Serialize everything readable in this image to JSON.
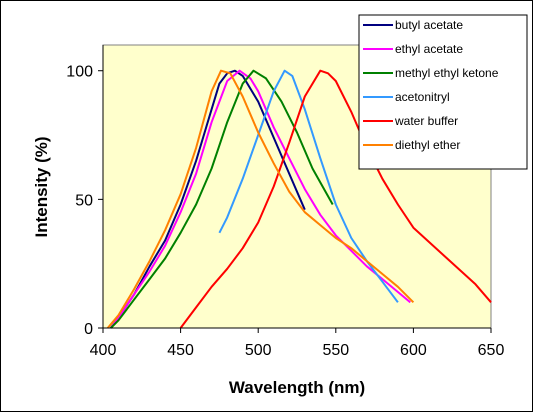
{
  "chart_data": {
    "type": "line",
    "title": "",
    "xlabel": "Wavelength (nm)",
    "ylabel": "Intensity (%)",
    "xlim": [
      400,
      650
    ],
    "ylim": [
      0,
      110
    ],
    "x_ticks": [
      400,
      450,
      500,
      550,
      600,
      650
    ],
    "y_ticks": [
      0,
      50,
      100
    ],
    "grid": false,
    "legend": "top-right",
    "plot_background": "#ffffcc",
    "series": [
      {
        "name": "butyl acetate",
        "color": "#000080",
        "points": [
          [
            405,
            0
          ],
          [
            410,
            4
          ],
          [
            420,
            13
          ],
          [
            430,
            24
          ],
          [
            440,
            34
          ],
          [
            450,
            48
          ],
          [
            460,
            65
          ],
          [
            470,
            85
          ],
          [
            475,
            95
          ],
          [
            480,
            99
          ],
          [
            485,
            100
          ],
          [
            490,
            98
          ],
          [
            500,
            88
          ],
          [
            510,
            74
          ],
          [
            520,
            60
          ],
          [
            530,
            46
          ]
        ]
      },
      {
        "name": "ethyl acetate",
        "color": "#ff00ff",
        "points": [
          [
            405,
            0
          ],
          [
            410,
            4
          ],
          [
            420,
            13
          ],
          [
            430,
            22
          ],
          [
            440,
            32
          ],
          [
            450,
            45
          ],
          [
            460,
            60
          ],
          [
            470,
            80
          ],
          [
            480,
            96
          ],
          [
            488,
            100
          ],
          [
            495,
            97
          ],
          [
            500,
            92
          ],
          [
            510,
            78
          ],
          [
            520,
            66
          ],
          [
            530,
            54
          ],
          [
            540,
            44
          ],
          [
            550,
            36
          ],
          [
            560,
            30
          ],
          [
            570,
            24
          ],
          [
            580,
            19
          ],
          [
            590,
            14
          ],
          [
            598,
            10
          ]
        ]
      },
      {
        "name": "methyl ethyl ketone",
        "color": "#008000",
        "points": [
          [
            405,
            0
          ],
          [
            410,
            3
          ],
          [
            420,
            11
          ],
          [
            430,
            19
          ],
          [
            440,
            27
          ],
          [
            450,
            37
          ],
          [
            460,
            48
          ],
          [
            470,
            62
          ],
          [
            480,
            80
          ],
          [
            490,
            95
          ],
          [
            497,
            100
          ],
          [
            505,
            97
          ],
          [
            515,
            88
          ],
          [
            525,
            76
          ],
          [
            535,
            62
          ],
          [
            548,
            48
          ]
        ]
      },
      {
        "name": "acetonitryl",
        "color": "#3399ff",
        "points": [
          [
            475,
            37
          ],
          [
            480,
            43
          ],
          [
            490,
            58
          ],
          [
            500,
            75
          ],
          [
            510,
            92
          ],
          [
            517,
            100
          ],
          [
            522,
            98
          ],
          [
            530,
            85
          ],
          [
            540,
            66
          ],
          [
            550,
            48
          ],
          [
            560,
            35
          ],
          [
            570,
            26
          ],
          [
            580,
            18
          ],
          [
            590,
            10
          ]
        ]
      },
      {
        "name": "water buffer",
        "color": "#ff0000",
        "points": [
          [
            450,
            0
          ],
          [
            460,
            8
          ],
          [
            470,
            16
          ],
          [
            480,
            23
          ],
          [
            490,
            31
          ],
          [
            500,
            41
          ],
          [
            510,
            55
          ],
          [
            520,
            72
          ],
          [
            530,
            90
          ],
          [
            540,
            100
          ],
          [
            545,
            99
          ],
          [
            550,
            96
          ],
          [
            560,
            84
          ],
          [
            570,
            70
          ],
          [
            580,
            58
          ],
          [
            590,
            48
          ],
          [
            600,
            39
          ],
          [
            620,
            28
          ],
          [
            640,
            17
          ],
          [
            650,
            10
          ]
        ]
      },
      {
        "name": "diethyl ether",
        "color": "#ff8000",
        "points": [
          [
            403,
            0
          ],
          [
            410,
            5
          ],
          [
            420,
            15
          ],
          [
            430,
            26
          ],
          [
            440,
            38
          ],
          [
            450,
            52
          ],
          [
            460,
            70
          ],
          [
            470,
            92
          ],
          [
            476,
            100
          ],
          [
            482,
            99
          ],
          [
            490,
            90
          ],
          [
            500,
            76
          ],
          [
            510,
            64
          ],
          [
            520,
            53
          ],
          [
            530,
            45
          ],
          [
            540,
            40
          ],
          [
            550,
            35
          ],
          [
            560,
            31
          ],
          [
            570,
            26
          ],
          [
            580,
            21
          ],
          [
            590,
            16
          ],
          [
            600,
            10
          ]
        ]
      }
    ]
  }
}
